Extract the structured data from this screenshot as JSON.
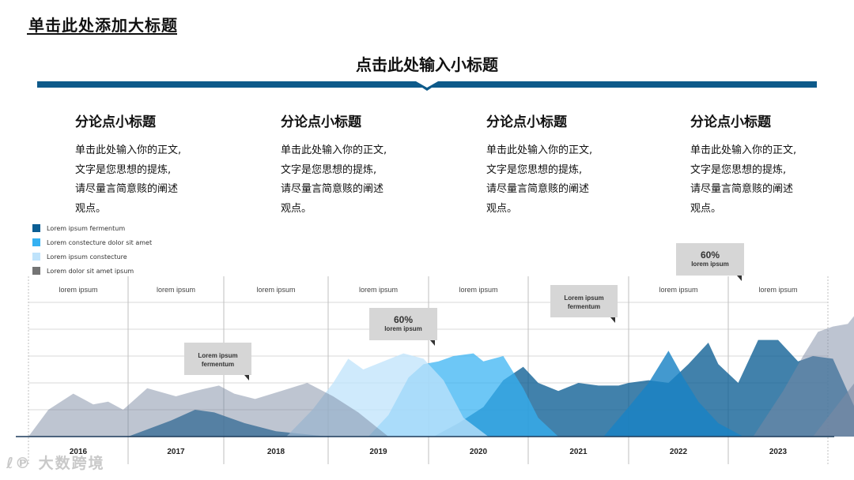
{
  "header": {
    "title": "单击此处添加大标题",
    "subtitle": "点击此处输入小标题"
  },
  "points": [
    {
      "title": "分论点小标题",
      "lines": [
        "单击此处输入你的正文,",
        "文字是您思想的提炼,",
        "请尽量言简意赅的阐述",
        "观点。"
      ]
    },
    {
      "title": "分论点小标题",
      "lines": [
        "单击此处输入你的正文,",
        "文字是您思想的提炼,",
        "请尽量言简意赅的阐述",
        "观点。"
      ]
    },
    {
      "title": "分论点小标题",
      "lines": [
        "单击此处输入你的正文,",
        "文字是您思想的提炼,",
        "请尽量言简意赅的阐述",
        "观点。"
      ]
    },
    {
      "title": "分论点小标题",
      "lines": [
        "单击此处输入你的正文,",
        "文字是您思想的提炼,",
        "请尽量言简意赅的阐述",
        "观点。"
      ]
    }
  ],
  "watermark": "大数跨境",
  "colors": {
    "band": "#0e5a8a",
    "grid": "#d9d9d9"
  },
  "chart_data": {
    "type": "area",
    "categories": [
      "2016",
      "2017",
      "2018",
      "2019",
      "2020",
      "2021",
      "2022",
      "2023"
    ],
    "column_labels": [
      "lorem ipsum",
      "lorem ipsum",
      "lorem ipsum",
      "lorem ipsum",
      "lorem ipsum",
      "",
      "lorem ipsum",
      "lorem ipsum"
    ],
    "legend_position": "top-left",
    "grid": true,
    "ylim": [
      0,
      100
    ],
    "series": [
      {
        "name": "Lorem ipsum fermentum",
        "color": "#0b5e94",
        "opacity": 0.78,
        "x": [
          1.0,
          1.45,
          1.7,
          1.9,
          2.2,
          2.5,
          3.0
        ],
        "y": [
          0,
          12,
          20,
          18,
          10,
          4,
          0
        ]
      },
      {
        "name": "Lorem ipsum fermentum",
        "color": "#0b5e94",
        "opacity": 0.78,
        "x": [
          4.05,
          4.3,
          4.55,
          4.75,
          4.95,
          5.1,
          5.3,
          5.5,
          5.7,
          5.9,
          6.0,
          6.2,
          6.4,
          6.6,
          6.8,
          6.9,
          7.1,
          7.3,
          7.5,
          7.7,
          7.85,
          8.05,
          8.4
        ],
        "y": [
          0,
          10,
          22,
          42,
          52,
          40,
          34,
          40,
          38,
          38,
          40,
          42,
          40,
          54,
          70,
          54,
          40,
          72,
          72,
          56,
          60,
          58,
          0
        ]
      },
      {
        "name": "Lorem constecture dolor sit amet",
        "color": "#35b1f2",
        "opacity": 0.72,
        "x": [
          3.4,
          3.6,
          3.8,
          3.95,
          4.1,
          4.25,
          4.45,
          4.55,
          4.65,
          4.75,
          4.95,
          5.1,
          5.3
        ],
        "y": [
          0,
          16,
          44,
          54,
          56,
          60,
          62,
          56,
          58,
          60,
          36,
          14,
          0
        ]
      },
      {
        "name": "Lorem constecture dolor sit amet",
        "color": "#1a82c4",
        "opacity": 0.82,
        "x": [
          5.75,
          6.0,
          6.2,
          6.4,
          6.55,
          6.7,
          6.9,
          7.15
        ],
        "y": [
          0,
          22,
          40,
          64,
          44,
          26,
          10,
          0
        ]
      },
      {
        "name": "Lorem ipsum constecture",
        "color": "#bfe3fb",
        "opacity": 0.75,
        "x": [
          2.6,
          2.85,
          3.05,
          3.2,
          3.35,
          3.55,
          3.75,
          3.95,
          4.15,
          4.35,
          4.6
        ],
        "y": [
          0,
          20,
          40,
          58,
          50,
          56,
          62,
          58,
          42,
          14,
          0
        ]
      },
      {
        "name": "Lorem dolor sit amet ipsum",
        "color": "#6f7f9a",
        "opacity": 0.45,
        "x": [
          0.0,
          0.2,
          0.45,
          0.65,
          0.8,
          0.95,
          1.2,
          1.5,
          1.7,
          1.95,
          2.1,
          2.3,
          2.55,
          2.8,
          3.05,
          3.3,
          3.6
        ],
        "y": [
          0,
          20,
          32,
          24,
          26,
          20,
          36,
          30,
          34,
          38,
          32,
          28,
          34,
          40,
          30,
          18,
          0
        ]
      },
      {
        "name": "Lorem dolor sit amet ipsum",
        "color": "#7c8aa4",
        "opacity": 0.5,
        "x": [
          7.25,
          7.55,
          7.75,
          7.9,
          8.05,
          8.2,
          8.35,
          8.5,
          8.65,
          8.75,
          8.9,
          9.0,
          9.1,
          9.3
        ],
        "y": [
          0,
          34,
          60,
          78,
          82,
          84,
          98,
          102,
          100,
          98,
          96,
          86,
          70,
          0
        ]
      },
      {
        "name": "Lorem dolor sit amet ipsum",
        "color": "#7c8aa4",
        "opacity": 0.6,
        "x": [
          7.85,
          8.1,
          8.35,
          8.55,
          8.7,
          8.85,
          9.0,
          9.2,
          9.45
        ],
        "y": [
          0,
          24,
          48,
          70,
          78,
          92,
          86,
          66,
          0
        ]
      }
    ],
    "callouts": [
      {
        "lines": [
          "Lorem ipsum",
          "fermentum"
        ]
      },
      {
        "lines": [
          "60%",
          "lorem ipsum"
        ]
      },
      {
        "lines": [
          "Lorem ipsum",
          "fermentum"
        ]
      },
      {
        "lines": [
          "60%",
          "lorem ipsum"
        ]
      }
    ]
  }
}
